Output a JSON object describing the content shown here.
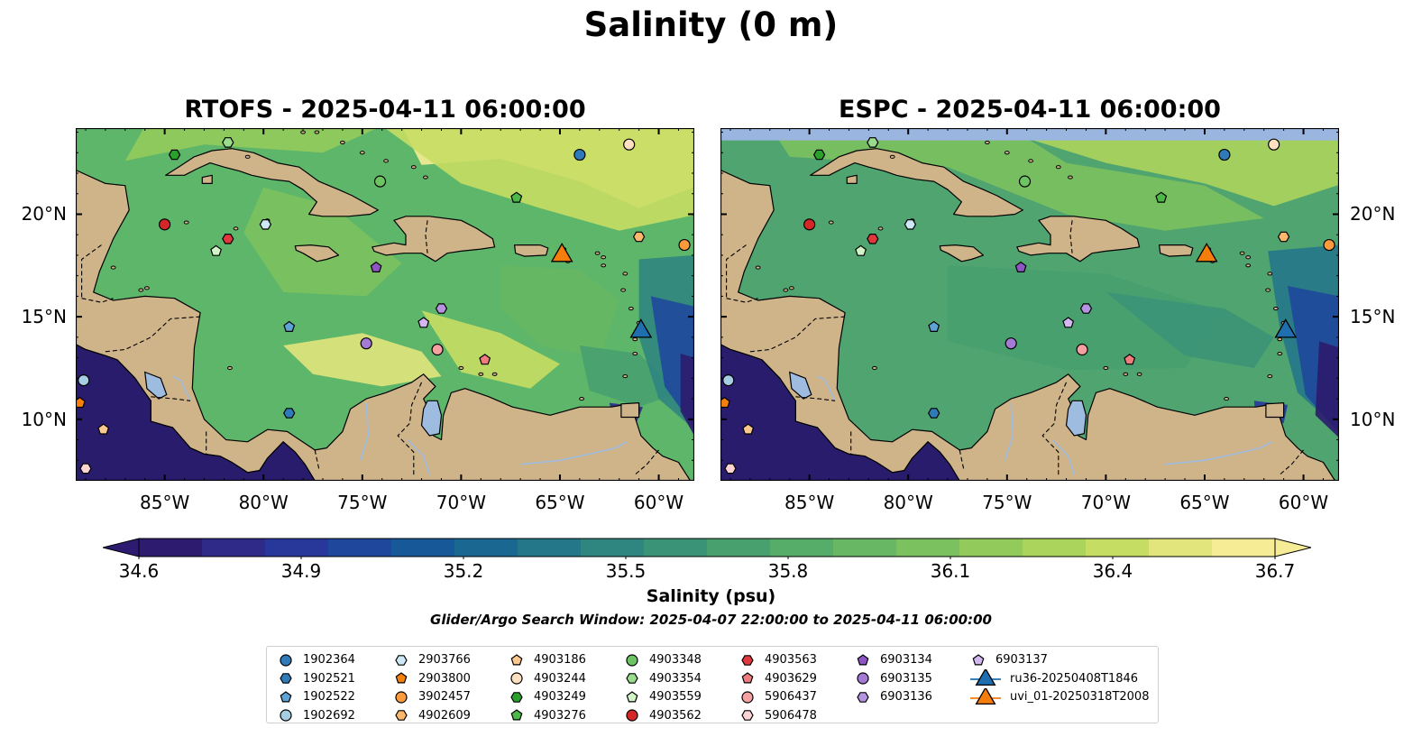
{
  "title": "Salinity (0 m)",
  "panels": [
    {
      "title": "RTOFS - 2025-04-11 06:00:00",
      "model": "RTOFS"
    },
    {
      "title": "ESPC - 2025-04-11 06:00:00",
      "model": "ESPC"
    }
  ],
  "map_extent": {
    "lon": [
      -89.5,
      -58.2
    ],
    "lat": [
      7.0,
      24.2
    ]
  },
  "x_ticks": [
    {
      "lon": -85,
      "label": "85°W"
    },
    {
      "lon": -80,
      "label": "80°W"
    },
    {
      "lon": -75,
      "label": "75°W"
    },
    {
      "lon": -70,
      "label": "70°W"
    },
    {
      "lon": -65,
      "label": "65°W"
    },
    {
      "lon": -60,
      "label": "60°W"
    }
  ],
  "y_ticks": [
    {
      "lat": 20,
      "label": "20°N"
    },
    {
      "lat": 15,
      "label": "15°N"
    },
    {
      "lat": 10,
      "label": "10°N"
    }
  ],
  "colorbar": {
    "label": "Salinity (psu)",
    "min": 34.6,
    "max": 36.7,
    "extend": "both",
    "ticks": [
      "34.6",
      "34.9",
      "35.2",
      "35.5",
      "35.8",
      "36.1",
      "36.4",
      "36.7"
    ],
    "colors": [
      "#2c1b6e",
      "#2f2a88",
      "#28389a",
      "#1f489c",
      "#175898",
      "#1a6892",
      "#247789",
      "#2f8580",
      "#3b9377",
      "#48a06f",
      "#56ac69",
      "#67b764",
      "#7bc15f",
      "#92cb5c",
      "#abd45c",
      "#c6dd64",
      "#e1e57c",
      "#f6ec95"
    ]
  },
  "colors": {
    "land": "#cfb48a",
    "lake": "#9ebbe0",
    "background_deep": "#2a1c6c",
    "espc_nodata": "#9ab6e0"
  },
  "search_window": "Glider/Argo Search Window: 2025-04-07 22:00:00 to 2025-04-11 06:00:00",
  "legend": [
    {
      "label": "1902364",
      "color": "#2f7ab8",
      "marker": "circle"
    },
    {
      "label": "1902521",
      "color": "#2f7ab8",
      "marker": "hexagon"
    },
    {
      "label": "1902522",
      "color": "#5da3d6",
      "marker": "pentagon"
    },
    {
      "label": "1902692",
      "color": "#a6cee3",
      "marker": "circle"
    },
    {
      "label": "2903766",
      "color": "#cde9f8",
      "marker": "hexagon"
    },
    {
      "label": "2903800",
      "color": "#f5800b",
      "marker": "pentagon"
    },
    {
      "label": "3902457",
      "color": "#fd9a3c",
      "marker": "circle"
    },
    {
      "label": "4902609",
      "color": "#fdb86b",
      "marker": "hexagon"
    },
    {
      "label": "4903186",
      "color": "#fdc88f",
      "marker": "pentagon"
    },
    {
      "label": "4903244",
      "color": "#fde0c0",
      "marker": "circle"
    },
    {
      "label": "4903249",
      "color": "#2ca02c",
      "marker": "hexagon"
    },
    {
      "label": "4903276",
      "color": "#4bb848",
      "marker": "pentagon"
    },
    {
      "label": "4903348",
      "color": "#6dc463",
      "marker": "circle"
    },
    {
      "label": "4903354",
      "color": "#98dc8c",
      "marker": "hexagon"
    },
    {
      "label": "4903559",
      "color": "#d2f5c8",
      "marker": "pentagon"
    },
    {
      "label": "4903562",
      "color": "#d62728",
      "marker": "circle"
    },
    {
      "label": "4903563",
      "color": "#e0383d",
      "marker": "hexagon"
    },
    {
      "label": "4903629",
      "color": "#ef7d7d",
      "marker": "pentagon"
    },
    {
      "label": "5906437",
      "color": "#f5a1a1",
      "marker": "circle"
    },
    {
      "label": "5906478",
      "color": "#fcd4d4",
      "marker": "hexagon"
    },
    {
      "label": "6903134",
      "color": "#8e56c4",
      "marker": "pentagon"
    },
    {
      "label": "6903135",
      "color": "#a57ad4",
      "marker": "circle"
    },
    {
      "label": "6903136",
      "color": "#b593e0",
      "marker": "hexagon"
    },
    {
      "label": "6903137",
      "color": "#d3b7f0",
      "marker": "pentagon"
    },
    {
      "label": "ru36-20250408T1846",
      "color": "#1f6fb0",
      "marker": "triangle"
    },
    {
      "label": "uvi_01-20250318T2008",
      "color": "#f57d0c",
      "marker": "triangle"
    }
  ],
  "markers": [
    {
      "id": "1902364",
      "lon": -64.0,
      "lat": 22.9
    },
    {
      "id": "4903244",
      "lon": -61.5,
      "lat": 23.4
    },
    {
      "id": "4903354",
      "lon": -81.8,
      "lat": 23.5
    },
    {
      "id": "4903249",
      "lon": -84.5,
      "lat": 22.9
    },
    {
      "id": "4903348",
      "lon": -74.1,
      "lat": 21.6
    },
    {
      "id": "4903276",
      "lon": -67.2,
      "lat": 20.8
    },
    {
      "id": "4903562",
      "lon": -85.0,
      "lat": 19.5
    },
    {
      "id": "2903766",
      "lon": -79.9,
      "lat": 19.5
    },
    {
      "id": "4903563",
      "lon": -81.8,
      "lat": 18.8
    },
    {
      "id": "4903559",
      "lon": -82.4,
      "lat": 18.2
    },
    {
      "id": "6903134",
      "lon": -74.3,
      "lat": 17.4
    },
    {
      "id": "4902609",
      "lon": -61.0,
      "lat": 18.9
    },
    {
      "id": "3902457",
      "lon": -58.7,
      "lat": 18.5
    },
    {
      "id": "6903137",
      "lon": -71.9,
      "lat": 14.7
    },
    {
      "id": "6903136",
      "lon": -71.0,
      "lat": 15.4
    },
    {
      "id": "1902522",
      "lon": -78.7,
      "lat": 14.5
    },
    {
      "id": "6903135",
      "lon": -74.8,
      "lat": 13.7
    },
    {
      "id": "5906437",
      "lon": -71.2,
      "lat": 13.4
    },
    {
      "id": "4903629",
      "lon": -68.8,
      "lat": 12.9
    },
    {
      "id": "1902521",
      "lon": -78.7,
      "lat": 10.3
    },
    {
      "id": "1902692",
      "lon": -89.1,
      "lat": 11.9
    },
    {
      "id": "2903800",
      "lon": -89.3,
      "lat": 10.8
    },
    {
      "id": "4903186",
      "lon": -88.1,
      "lat": 9.5
    },
    {
      "id": "5906478",
      "lon": -89.0,
      "lat": 7.6
    },
    {
      "id": "ru36-20250408T1846",
      "lon": -60.9,
      "lat": 14.4
    },
    {
      "id": "uvi_01-20250318T2008",
      "lon": -64.9,
      "lat": 18.1
    }
  ]
}
